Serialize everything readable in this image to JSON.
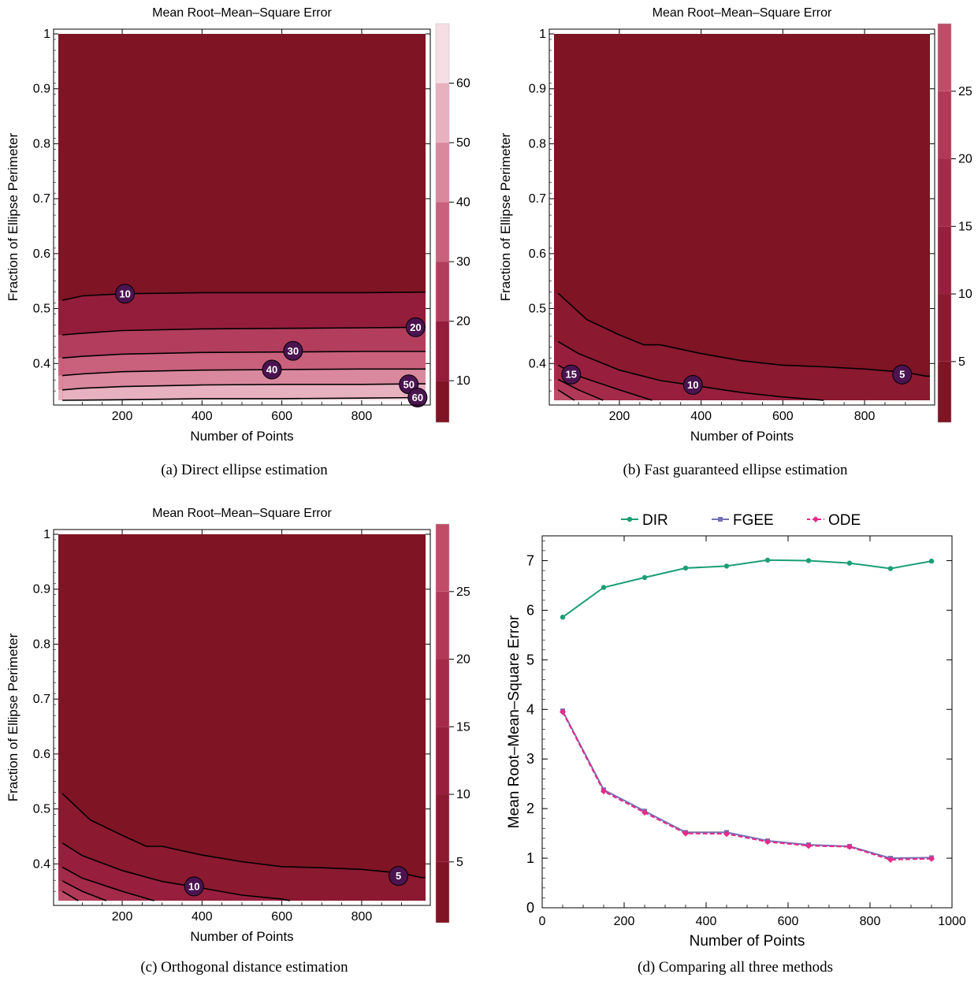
{
  "panels": {
    "a": {
      "title": "Mean Root–Mean–Square Error",
      "xlabel": "Number of Points",
      "ylabel": "Fraction of Ellipse Perimeter",
      "caption": "(a) Direct ellipse estimation"
    },
    "b": {
      "title": "Mean Root–Mean–Square Error",
      "xlabel": "Number of Points",
      "ylabel": "Fraction of Ellipse Perimeter",
      "caption": "(b) Fast guaranteed ellipse estimation"
    },
    "c": {
      "title": "Mean Root–Mean–Square Error",
      "xlabel": "Number of Points",
      "ylabel": "Fraction of Ellipse Perimeter",
      "caption": "(c) Orthogonal distance estimation"
    },
    "d": {
      "xlabel": "Number of Points",
      "ylabel": "Mean Root–Mean–Square Error",
      "caption": "(d) Comparing all three methods"
    }
  },
  "chart_data": [
    {
      "type": "contour",
      "title": "Mean Root–Mean–Square Error",
      "xlabel": "Number of Points",
      "ylabel": "Fraction of Ellipse Perimeter",
      "xlim": [
        40,
        960
      ],
      "ylim": [
        0.333,
        1.0
      ],
      "xticks": [
        200,
        400,
        600,
        800
      ],
      "yticks": [
        0.4,
        0.5,
        0.6,
        0.7,
        0.8,
        0.9,
        1.0
      ],
      "bands": [
        {
          "range": [
            0,
            10
          ],
          "color": "#7f1424"
        },
        {
          "range": [
            10,
            20
          ],
          "color": "#941d3b"
        },
        {
          "range": [
            20,
            30
          ],
          "color": "#b23d5d"
        },
        {
          "range": [
            30,
            40
          ],
          "color": "#c9607c"
        },
        {
          "range": [
            40,
            50
          ],
          "color": "#da889e"
        },
        {
          "range": [
            50,
            60
          ],
          "color": "#e8b1c0"
        },
        {
          "range": [
            60,
            70
          ],
          "color": "#f6dee5"
        }
      ],
      "contours": [
        {
          "level": 10,
          "x": [
            50,
            100,
            200,
            400,
            600,
            800,
            950
          ],
          "y": [
            0.515,
            0.523,
            0.527,
            0.529,
            0.529,
            0.529,
            0.53
          ]
        },
        {
          "level": 20,
          "x": [
            50,
            100,
            200,
            400,
            600,
            800,
            950
          ],
          "y": [
            0.452,
            0.455,
            0.46,
            0.463,
            0.464,
            0.465,
            0.466
          ]
        },
        {
          "level": 30,
          "x": [
            50,
            100,
            200,
            400,
            600,
            800,
            950
          ],
          "y": [
            0.41,
            0.413,
            0.417,
            0.42,
            0.421,
            0.422,
            0.422
          ]
        },
        {
          "level": 40,
          "x": [
            50,
            100,
            200,
            400,
            600,
            800,
            950
          ],
          "y": [
            0.378,
            0.381,
            0.385,
            0.388,
            0.389,
            0.39,
            0.39
          ]
        },
        {
          "level": 50,
          "x": [
            50,
            100,
            200,
            400,
            600,
            800,
            950
          ],
          "y": [
            0.352,
            0.355,
            0.358,
            0.361,
            0.362,
            0.362,
            0.363
          ]
        },
        {
          "level": 60,
          "x": [
            50,
            200,
            400,
            600,
            800,
            950
          ],
          "y": [
            0.333,
            0.334,
            0.336,
            0.336,
            0.337,
            0.338
          ]
        }
      ],
      "contour_labels": [
        {
          "text": "10",
          "x": 207,
          "y": 0.527
        },
        {
          "text": "20",
          "x": 935,
          "y": 0.466
        },
        {
          "text": "30",
          "x": 628,
          "y": 0.423
        },
        {
          "text": "40",
          "x": 575,
          "y": 0.389
        },
        {
          "text": "50",
          "x": 918,
          "y": 0.362
        },
        {
          "text": "60",
          "x": 940,
          "y": 0.338
        }
      ],
      "colorbar": {
        "min": 3,
        "max": 70,
        "ticks": [
          10,
          20,
          30,
          40,
          50,
          60
        ]
      }
    },
    {
      "type": "contour",
      "title": "Mean Root–Mean–Square Error",
      "xlabel": "Number of Points",
      "ylabel": "Fraction of Ellipse Perimeter",
      "xlim": [
        40,
        960
      ],
      "ylim": [
        0.333,
        1.0
      ],
      "xticks": [
        200,
        400,
        600,
        800
      ],
      "yticks": [
        0.4,
        0.5,
        0.6,
        0.7,
        0.8,
        0.9,
        1.0
      ],
      "bands": [
        {
          "range": [
            0,
            5
          ],
          "color": "#7f1424"
        },
        {
          "range": [
            5,
            10
          ],
          "color": "#8b1930"
        },
        {
          "range": [
            10,
            15
          ],
          "color": "#971f3d"
        },
        {
          "range": [
            15,
            20
          ],
          "color": "#a42a4a"
        },
        {
          "range": [
            20,
            25
          ],
          "color": "#b13957"
        },
        {
          "range": [
            25,
            30
          ],
          "color": "#bf4d67"
        }
      ],
      "contours": [
        {
          "level": 5,
          "x": [
            50,
            120,
            200,
            260,
            300,
            400,
            500,
            600,
            700,
            800,
            900,
            950
          ],
          "y": [
            0.528,
            0.48,
            0.452,
            0.434,
            0.434,
            0.418,
            0.405,
            0.397,
            0.394,
            0.39,
            0.384,
            0.377
          ]
        },
        {
          "level": 10,
          "x": [
            50,
            100,
            200,
            300,
            400,
            500,
            600,
            700
          ],
          "y": [
            0.44,
            0.418,
            0.388,
            0.369,
            0.358,
            0.347,
            0.339,
            0.333
          ]
        },
        {
          "level": 15,
          "x": [
            50,
            100,
            200,
            280
          ],
          "y": [
            0.397,
            0.377,
            0.352,
            0.333
          ]
        },
        {
          "level": 20,
          "x": [
            50,
            100,
            160
          ],
          "y": [
            0.371,
            0.352,
            0.333
          ]
        },
        {
          "level": 25,
          "x": [
            50,
            90
          ],
          "y": [
            0.352,
            0.333
          ]
        }
      ],
      "contour_labels": [
        {
          "text": "15",
          "x": 82,
          "y": 0.38
        },
        {
          "text": "10",
          "x": 380,
          "y": 0.361
        },
        {
          "text": "5",
          "x": 892,
          "y": 0.38
        }
      ],
      "colorbar": {
        "min": 0.5,
        "max": 30,
        "ticks": [
          5,
          10,
          15,
          20,
          25
        ]
      }
    },
    {
      "type": "contour",
      "title": "Mean Root–Mean–Square Error",
      "xlabel": "Number of Points",
      "ylabel": "Fraction of Ellipse Perimeter",
      "xlim": [
        40,
        960
      ],
      "ylim": [
        0.333,
        1.0
      ],
      "xticks": [
        200,
        400,
        600,
        800
      ],
      "yticks": [
        0.4,
        0.5,
        0.6,
        0.7,
        0.8,
        0.9,
        1.0
      ],
      "bands": [
        {
          "range": [
            0,
            5
          ],
          "color": "#7f1424"
        },
        {
          "range": [
            5,
            10
          ],
          "color": "#8b1930"
        },
        {
          "range": [
            10,
            15
          ],
          "color": "#971f3d"
        },
        {
          "range": [
            15,
            20
          ],
          "color": "#a42a4a"
        },
        {
          "range": [
            20,
            25
          ],
          "color": "#b13957"
        },
        {
          "range": [
            25,
            30
          ],
          "color": "#bf4d67"
        }
      ],
      "contours": [
        {
          "level": 5,
          "x": [
            50,
            120,
            200,
            260,
            300,
            400,
            500,
            600,
            700,
            800,
            900,
            950
          ],
          "y": [
            0.528,
            0.48,
            0.452,
            0.432,
            0.432,
            0.416,
            0.404,
            0.395,
            0.393,
            0.39,
            0.383,
            0.375
          ]
        },
        {
          "level": 10,
          "x": [
            50,
            100,
            200,
            300,
            400,
            500,
            600,
            620
          ],
          "y": [
            0.438,
            0.415,
            0.388,
            0.368,
            0.356,
            0.343,
            0.336,
            0.333
          ]
        },
        {
          "level": 15,
          "x": [
            50,
            100,
            200,
            280
          ],
          "y": [
            0.394,
            0.374,
            0.35,
            0.333
          ]
        },
        {
          "level": 20,
          "x": [
            50,
            100,
            160
          ],
          "y": [
            0.369,
            0.35,
            0.333
          ]
        },
        {
          "level": 25,
          "x": [
            50,
            90
          ],
          "y": [
            0.35,
            0.333
          ]
        }
      ],
      "contour_labels": [
        {
          "text": "10",
          "x": 380,
          "y": 0.359
        },
        {
          "text": "5",
          "x": 892,
          "y": 0.378
        }
      ],
      "colorbar": {
        "min": 0.5,
        "max": 30,
        "ticks": [
          5,
          10,
          15,
          20,
          25
        ]
      }
    },
    {
      "type": "line",
      "title": "",
      "xlabel": "Number of Points",
      "ylabel": "Mean Root–Mean–Square Error",
      "xlim": [
        0,
        1000
      ],
      "ylim": [
        0,
        7.5
      ],
      "xticks": [
        0,
        200,
        400,
        600,
        800,
        1000
      ],
      "yticks": [
        0,
        1,
        2,
        3,
        4,
        5,
        6,
        7
      ],
      "x": [
        50,
        150,
        250,
        350,
        450,
        550,
        650,
        750,
        850,
        950
      ],
      "series": [
        {
          "name": "DIR",
          "color": "#1b9e77",
          "dashed": false,
          "marker": "circle",
          "values": [
            5.86,
            6.46,
            6.66,
            6.85,
            6.89,
            7.01,
            7.0,
            6.95,
            6.84,
            6.99
          ]
        },
        {
          "name": "FGEE",
          "color": "#7570b3",
          "dashed": false,
          "marker": "square",
          "values": [
            3.97,
            2.38,
            1.95,
            1.52,
            1.52,
            1.35,
            1.27,
            1.24,
            1.0,
            1.01
          ]
        },
        {
          "name": "ODE",
          "color": "#e7298a",
          "dashed": true,
          "marker": "diamond",
          "values": [
            3.95,
            2.35,
            1.92,
            1.5,
            1.49,
            1.33,
            1.25,
            1.23,
            0.97,
            0.99
          ]
        }
      ],
      "legend": "top-center"
    }
  ]
}
